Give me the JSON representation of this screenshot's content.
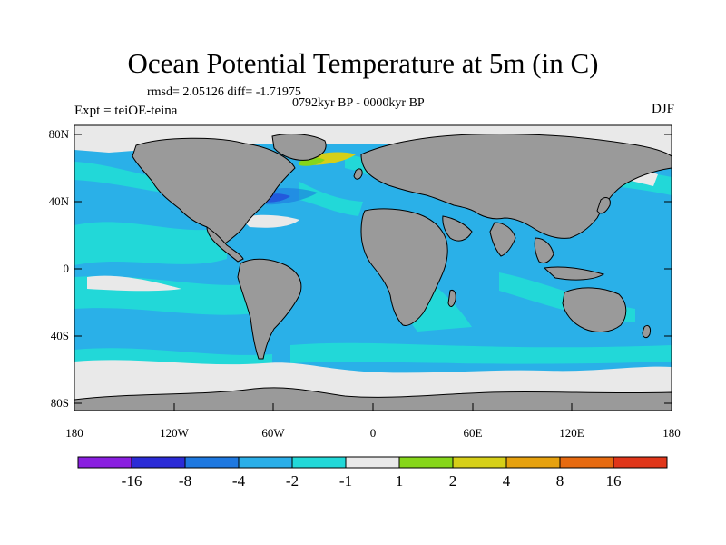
{
  "title": "Ocean Potential Temperature at 5m (in C)",
  "stats_line": "rmsd= 2.05126 diff= -1.71975",
  "period_line": "0792kyr BP - 0000kyr BP",
  "experiment": "Expt = teiOE-teina",
  "season": "DJF",
  "lat_ticks": [
    "80N",
    "40N",
    "0",
    "40S",
    "80S"
  ],
  "lon_ticks": [
    "180",
    "120W",
    "60W",
    "0",
    "60E",
    "120E",
    "180"
  ],
  "colorbar": {
    "colors": [
      "#8a1fe0",
      "#2b2bd6",
      "#1e78e0",
      "#2aaee8",
      "#22d8d8",
      "#e9e9e9",
      "#86d61a",
      "#d6cf18",
      "#e6a10e",
      "#e66a10",
      "#e0361a"
    ],
    "labels": [
      "-16",
      "-8",
      "-4",
      "-2",
      "-1",
      "1",
      "2",
      "4",
      "8",
      "16"
    ]
  },
  "fill_colors": {
    "land": "#9a9a9a",
    "ocean_main": "#2ab0e8",
    "ocean_cyan": "#22d8d8",
    "ice": "#e9e9e9"
  }
}
